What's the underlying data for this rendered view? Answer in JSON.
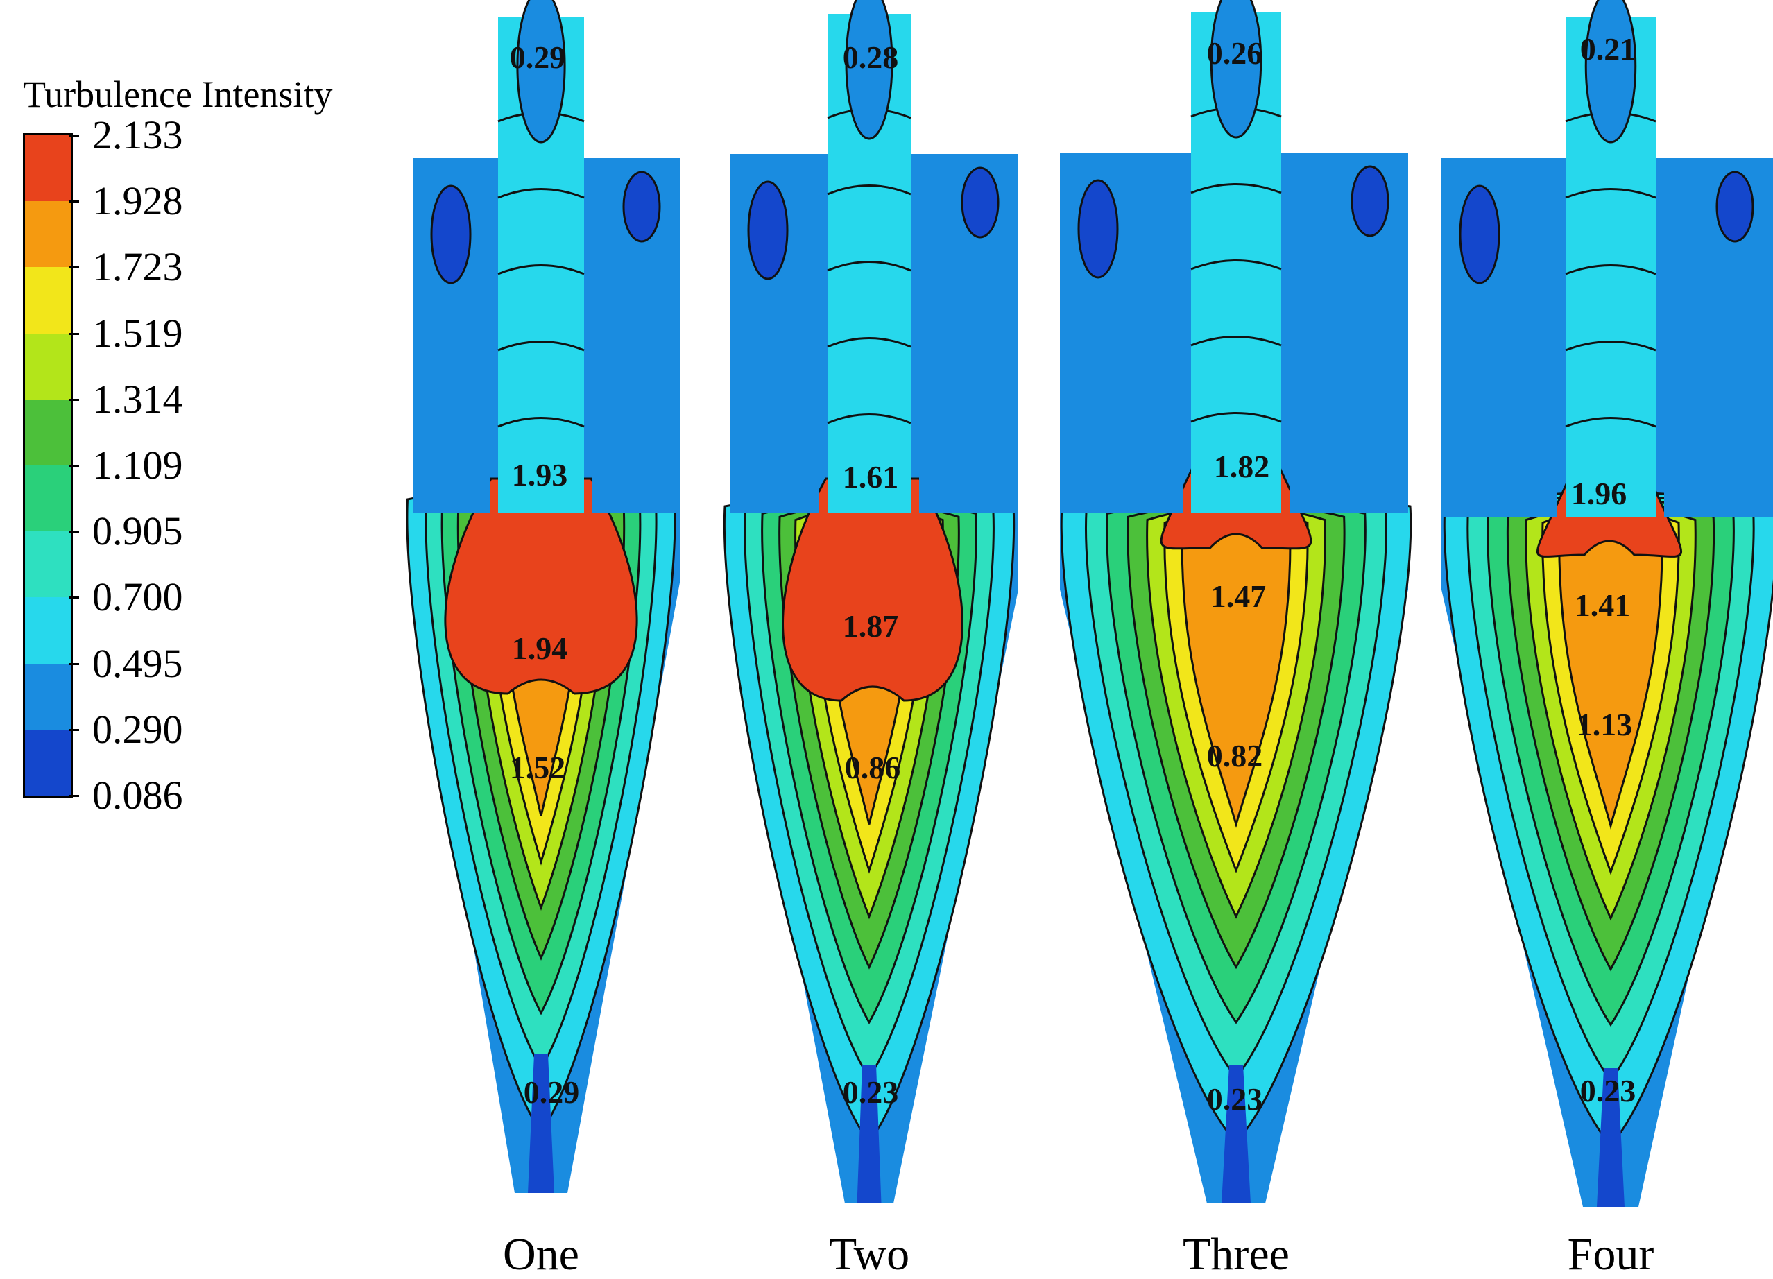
{
  "legend": {
    "title": "Turbulence Intensity",
    "ticks": [
      "2.133",
      "1.928",
      "1.723",
      "1.519",
      "1.314",
      "1.109",
      "0.905",
      "0.700",
      "0.495",
      "0.290",
      "0.086"
    ],
    "colors": [
      "#e8431c",
      "#f59a10",
      "#f2e61a",
      "#b3e51a",
      "#4cc03a",
      "#2ad07a",
      "#2ee0c0",
      "#27d8ec",
      "#1a8ce0",
      "#1447cc"
    ]
  },
  "panels": [
    {
      "label": "One",
      "contour_labels": [
        "0.29",
        "1.93",
        "1.94",
        "1.52",
        "0.29"
      ]
    },
    {
      "label": "Two",
      "contour_labels": [
        "0.28",
        "1.61",
        "1.87",
        "0.86",
        "0.23"
      ]
    },
    {
      "label": "Three",
      "contour_labels": [
        "0.26",
        "1.82",
        "1.47",
        "0.82",
        "0.23"
      ]
    },
    {
      "label": "Four",
      "contour_labels": [
        "0.21",
        "1.96",
        "1.41",
        "1.13",
        "0.23"
      ]
    }
  ],
  "colors": {
    "body_outer": "#1a8ce0",
    "body_inner": "#27d8ec",
    "low_core": "#1447cc",
    "contour_line": "#111111",
    "label_text": "#111111"
  }
}
